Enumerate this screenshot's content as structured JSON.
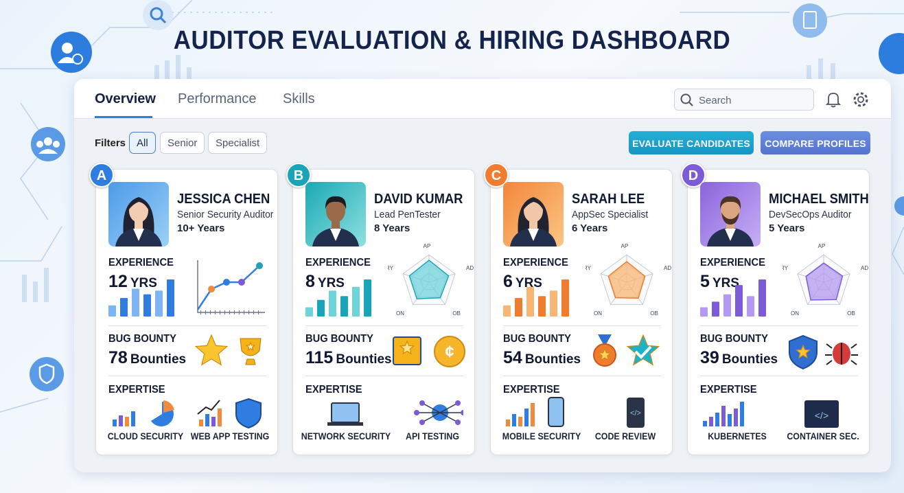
{
  "header": {
    "title": "AUDITOR EVALUATION & HIRING DASHBOARD"
  },
  "tabs": [
    "Overview",
    "Performance",
    "Skills"
  ],
  "search": {
    "placeholder": "Search"
  },
  "filters": {
    "label": "Filters",
    "options": [
      "All",
      "Senior",
      "Specialist"
    ]
  },
  "actions": [
    "EVALUATE CANDIDATES",
    "COMPARE PROFILES"
  ],
  "candidates": [
    {
      "badge": "A",
      "name": "JESSICA CHEN",
      "role": "Senior Security Auditor",
      "tenure": "10+ Years",
      "experience": {
        "label": "EXPERIENCE",
        "value": 12,
        "unit": "YRS"
      },
      "bounty": {
        "label": "BUG BOUNTY",
        "value": 78,
        "unit": "Bounties"
      },
      "expertise": {
        "label": "EXPERTISE",
        "items": [
          "CLOUD SECURITY",
          "WEB APP TESTING"
        ]
      }
    },
    {
      "badge": "B",
      "name": "DAVID KUMAR",
      "role": "Lead PenTester",
      "tenure": "8 Years",
      "experience": {
        "label": "EXPERIENCE",
        "value": 8,
        "unit": "YRS"
      },
      "radar": [
        "AP",
        "AD",
        "OB",
        "ON",
        "RY"
      ],
      "bounty": {
        "label": "BUG BOUNTY",
        "value": 115,
        "unit": "Bounties"
      },
      "expertise": {
        "label": "EXPERTISE",
        "items": [
          "NETWORK SECURITY",
          "API TESTING"
        ]
      }
    },
    {
      "badge": "C",
      "name": "SARAH LEE",
      "role": "AppSec Specialist",
      "tenure": "6 Years",
      "experience": {
        "label": "EXPERIENCE",
        "value": 6,
        "unit": "YRS"
      },
      "radar": [
        "AP",
        "AD",
        "OB",
        "ON",
        "RY"
      ],
      "bounty": {
        "label": "BUG BOUNTY",
        "value": 54,
        "unit": "Bounties"
      },
      "expertise": {
        "label": "EXPERTISE",
        "items": [
          "MOBILE SECURITY",
          "CODE REVIEW"
        ]
      }
    },
    {
      "badge": "D",
      "name": "MICHAEL SMITH",
      "role": "DevSecOps Auditor",
      "tenure": "5 Years",
      "experience": {
        "label": "EXPERIENCE",
        "value": 5,
        "unit": "YRS"
      },
      "radar": [
        "AP",
        "AD",
        "OB",
        "ON",
        "RY"
      ],
      "bounty": {
        "label": "BUG BOUNTY",
        "value": 39,
        "unit": "Bounties"
      },
      "expertise": {
        "label": "EXPERTISE",
        "items": [
          "KUBERNETES",
          "CONTAINER SEC."
        ]
      }
    }
  ]
}
